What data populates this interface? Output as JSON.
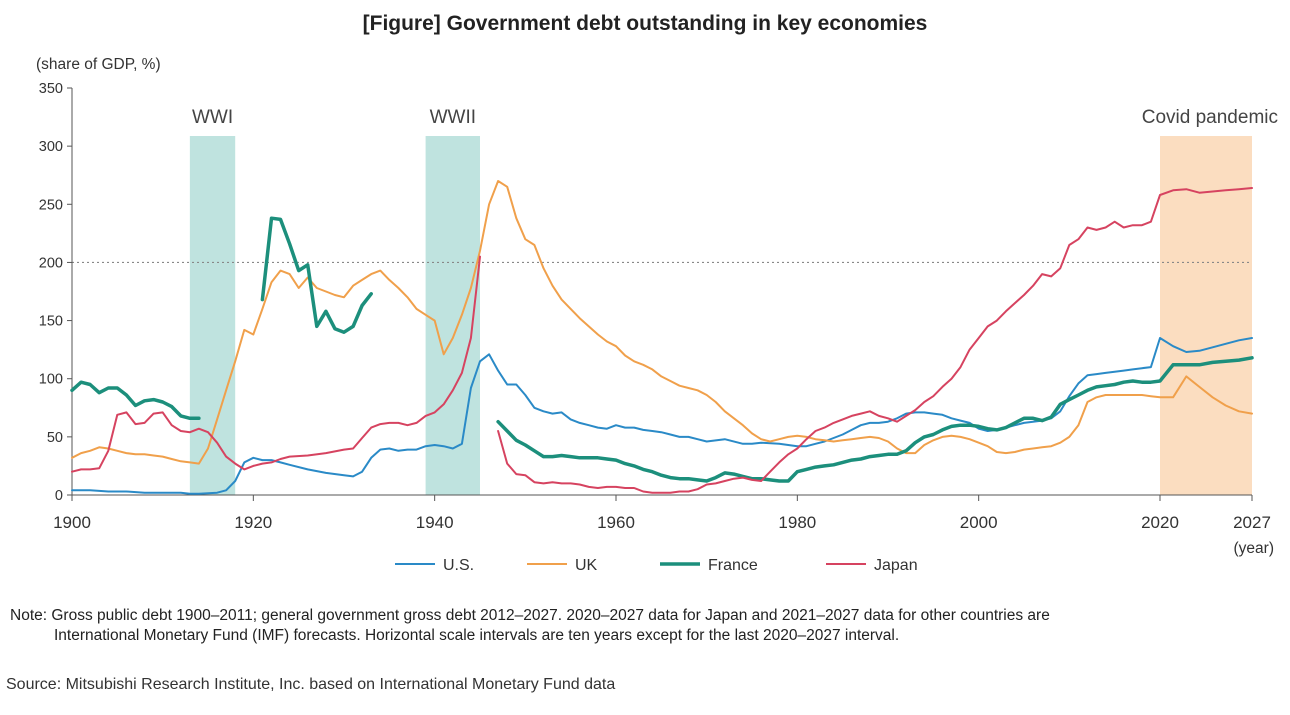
{
  "title": "[Figure] Government debt outstanding in key economies",
  "note": {
    "line1": "Note: Gross public debt 1900–2011; general government gross debt 2012–2027. 2020–2027 data for Japan and 2021–2027 data for other countries are",
    "line2": "International Monetary Fund (IMF) forecasts. Horizontal scale intervals are ten years except for the last 2020–2027 interval."
  },
  "source": "Source: Mitsubishi Research Institute, Inc. based on International Monetary Fund data",
  "chart_data": {
    "type": "line",
    "ylabel": "(share of GDP, %)",
    "xlabel": "(year)",
    "ylim": [
      0,
      350
    ],
    "yticks": [
      0,
      50,
      100,
      150,
      200,
      250,
      300,
      350
    ],
    "xticks": [
      1900,
      1920,
      1940,
      1960,
      1980,
      2000,
      2020,
      2027
    ],
    "x_scale_note": "ten-year intervals, last interval 2020-2027",
    "reference_line": {
      "y": 200,
      "style": "dotted"
    },
    "shaded_periods": [
      {
        "label": "WWI",
        "start": 1913,
        "end": 1918,
        "color": "#bfe3df"
      },
      {
        "label": "WWII",
        "start": 1939,
        "end": 1945,
        "color": "#bfe3df"
      },
      {
        "label": "Covid pandemic",
        "start": 2020,
        "end": 2027,
        "color": "#fbddc0"
      }
    ],
    "legend_position": "bottom",
    "series": [
      {
        "name": "U.S.",
        "color": "#2a8ac7",
        "width": 2,
        "x": [
          1900,
          1902,
          1904,
          1906,
          1908,
          1910,
          1912,
          1913,
          1914,
          1916,
          1917,
          1918,
          1919,
          1920,
          1921,
          1922,
          1923,
          1924,
          1926,
          1928,
          1930,
          1931,
          1932,
          1933,
          1934,
          1935,
          1936,
          1937,
          1938,
          1939,
          1940,
          1941,
          1942,
          1943,
          1944,
          1945,
          1946,
          1947,
          1948,
          1949,
          1950,
          1951,
          1952,
          1953,
          1954,
          1955,
          1956,
          1957,
          1958,
          1959,
          1960,
          1961,
          1962,
          1963,
          1964,
          1965,
          1966,
          1967,
          1968,
          1969,
          1970,
          1972,
          1974,
          1975,
          1976,
          1978,
          1980,
          1981,
          1982,
          1983,
          1984,
          1985,
          1986,
          1987,
          1988,
          1989,
          1990,
          1991,
          1992,
          1993,
          1994,
          1995,
          1996,
          1997,
          1998,
          1999,
          2000,
          2001,
          2002,
          2003,
          2004,
          2005,
          2006,
          2007,
          2008,
          2009,
          2010,
          2011,
          2012,
          2013,
          2014,
          2015,
          2016,
          2017,
          2018,
          2019,
          2020,
          2021,
          2022,
          2023,
          2024,
          2025,
          2026,
          2027
        ],
        "y": [
          4,
          4,
          3,
          3,
          2,
          2,
          2,
          1,
          1,
          2,
          4,
          12,
          28,
          32,
          30,
          30,
          28,
          26,
          22,
          19,
          17,
          16,
          20,
          32,
          39,
          40,
          38,
          39,
          39,
          42,
          43,
          42,
          40,
          44,
          92,
          115,
          121,
          107,
          95,
          95,
          86,
          75,
          72,
          70,
          71,
          65,
          62,
          60,
          58,
          57,
          60,
          58,
          58,
          56,
          55,
          54,
          52,
          50,
          50,
          48,
          46,
          48,
          44,
          44,
          45,
          44,
          42,
          42,
          44,
          46,
          49,
          52,
          56,
          60,
          62,
          62,
          63,
          66,
          70,
          71,
          71,
          70,
          69,
          66,
          64,
          62,
          57,
          55,
          56,
          58,
          60,
          62,
          63,
          64,
          66,
          72,
          85,
          96,
          103,
          104,
          105,
          106,
          107,
          108,
          109,
          110,
          135,
          128,
          123,
          124,
          127,
          130,
          133,
          135
        ]
      },
      {
        "name": "UK",
        "color": "#f0a04b",
        "width": 2,
        "x": [
          1900,
          1901,
          1902,
          1903,
          1904,
          1905,
          1906,
          1907,
          1908,
          1909,
          1910,
          1911,
          1912,
          1913,
          1914,
          1915,
          1916,
          1917,
          1918,
          1919,
          1920,
          1921,
          1922,
          1923,
          1924,
          1925,
          1926,
          1927,
          1928,
          1929,
          1930,
          1931,
          1932,
          1933,
          1934,
          1935,
          1936,
          1937,
          1938,
          1939,
          1940,
          1941,
          1942,
          1943,
          1944,
          1945,
          1946,
          1947,
          1948,
          1949,
          1950,
          1951,
          1952,
          1953,
          1954,
          1955,
          1956,
          1957,
          1958,
          1959,
          1960,
          1961,
          1962,
          1963,
          1964,
          1965,
          1966,
          1967,
          1968,
          1969,
          1970,
          1971,
          1972,
          1973,
          1974,
          1975,
          1976,
          1977,
          1978,
          1979,
          1980,
          1981,
          1982,
          1983,
          1984,
          1985,
          1986,
          1987,
          1988,
          1989,
          1990,
          1991,
          1992,
          1993,
          1994,
          1995,
          1996,
          1997,
          1998,
          1999,
          2000,
          2001,
          2002,
          2003,
          2004,
          2005,
          2006,
          2007,
          2008,
          2009,
          2010,
          2011,
          2012,
          2013,
          2014,
          2015,
          2016,
          2017,
          2018,
          2019,
          2020,
          2021,
          2022,
          2023,
          2024,
          2025,
          2026,
          2027
        ],
        "y": [
          32,
          36,
          38,
          41,
          40,
          38,
          36,
          35,
          35,
          34,
          33,
          31,
          29,
          28,
          27,
          40,
          65,
          90,
          115,
          142,
          138,
          160,
          183,
          193,
          190,
          178,
          187,
          178,
          175,
          172,
          170,
          180,
          185,
          190,
          193,
          185,
          178,
          170,
          160,
          155,
          150,
          121,
          135,
          155,
          178,
          210,
          250,
          270,
          265,
          238,
          220,
          215,
          195,
          180,
          168,
          160,
          152,
          145,
          138,
          132,
          128,
          120,
          115,
          112,
          108,
          102,
          98,
          94,
          92,
          90,
          86,
          80,
          72,
          66,
          60,
          53,
          48,
          46,
          48,
          50,
          51,
          50,
          48,
          47,
          46,
          47,
          48,
          49,
          50,
          49,
          46,
          40,
          36,
          36,
          43,
          47,
          50,
          51,
          50,
          48,
          45,
          42,
          37,
          36,
          37,
          39,
          40,
          41,
          42,
          45,
          50,
          60,
          80,
          84,
          86,
          86,
          86,
          86,
          86,
          85,
          84,
          84,
          102,
          93,
          84,
          77,
          72,
          70
        ]
      },
      {
        "name": "France",
        "color": "#1c8f7c",
        "width": 3.5,
        "segments": [
          {
            "x": [
              1900,
              1901,
              1902,
              1903,
              1904,
              1905,
              1906,
              1907,
              1908,
              1909,
              1910,
              1911,
              1912,
              1913,
              1914
            ],
            "y": [
              90,
              97,
              95,
              88,
              92,
              92,
              86,
              77,
              81,
              82,
              80,
              76,
              68,
              66,
              66
            ]
          },
          {
            "x": [
              1921,
              1922,
              1923,
              1924,
              1925,
              1926,
              1927,
              1928,
              1929,
              1930,
              1931,
              1932,
              1933
            ],
            "y": [
              168,
              238,
              237,
              216,
              193,
              198,
              145,
              158,
              143,
              140,
              145,
              163,
              173
            ]
          },
          {
            "x": [
              1947,
              1948,
              1949,
              1950,
              1951,
              1952,
              1953,
              1954,
              1955,
              1956,
              1957,
              1958,
              1959,
              1960,
              1961,
              1962,
              1963,
              1964,
              1965,
              1966,
              1967,
              1968,
              1969,
              1970,
              1971,
              1972,
              1973,
              1974,
              1975,
              1976,
              1977,
              1978,
              1979,
              1980,
              1981,
              1982,
              1983,
              1984,
              1985,
              1986,
              1987,
              1988,
              1989,
              1990,
              1991,
              1992,
              1993,
              1994,
              1995,
              1996,
              1997,
              1998,
              1999,
              2000,
              2001,
              2002,
              2003,
              2004,
              2005,
              2006,
              2007,
              2008,
              2009,
              2010,
              2011,
              2012,
              2013,
              2014,
              2015,
              2016,
              2017,
              2018,
              2019,
              2020,
              2021,
              2022,
              2023,
              2024,
              2025,
              2026,
              2027
            ],
            "y": [
              63,
              55,
              47,
              43,
              38,
              33,
              33,
              34,
              33,
              32,
              32,
              32,
              31,
              30,
              27,
              25,
              22,
              20,
              17,
              15,
              14,
              14,
              13,
              12,
              15,
              19,
              18,
              16,
              14,
              14,
              13,
              12,
              12,
              20,
              22,
              24,
              25,
              26,
              28,
              30,
              31,
              33,
              34,
              35,
              35,
              38,
              45,
              50,
              52,
              56,
              59,
              60,
              60,
              59,
              57,
              56,
              58,
              62,
              66,
              66,
              64,
              67,
              78,
              82,
              86,
              90,
              93,
              94,
              95,
              97,
              98,
              97,
              97,
              98,
              112,
              112,
              112,
              114,
              115,
              116,
              118
            ]
          }
        ]
      },
      {
        "name": "Japan",
        "color": "#d64360",
        "width": 2,
        "segments": [
          {
            "x": [
              1900,
              1901,
              1902,
              1903,
              1904,
              1905,
              1906,
              1907,
              1908,
              1909,
              1910,
              1911,
              1912,
              1913,
              1914,
              1915,
              1916,
              1917,
              1918,
              1919,
              1920,
              1921,
              1922,
              1923,
              1924,
              1926,
              1928,
              1930,
              1931,
              1932,
              1933,
              1934,
              1935,
              1936,
              1937,
              1938,
              1939,
              1940,
              1941,
              1942,
              1943,
              1944,
              1945
            ],
            "y": [
              20,
              22,
              22,
              23,
              38,
              69,
              71,
              61,
              62,
              70,
              71,
              60,
              55,
              54,
              57,
              54,
              45,
              33,
              27,
              22,
              25,
              27,
              28,
              31,
              33,
              34,
              36,
              39,
              40,
              49,
              58,
              61,
              62,
              62,
              60,
              62,
              68,
              71,
              78,
              90,
              105,
              135,
              205
            ]
          },
          {
            "x": [
              1947,
              1948,
              1949,
              1950,
              1951,
              1952,
              1953,
              1954,
              1955,
              1956,
              1957,
              1958,
              1959,
              1960,
              1961,
              1962,
              1963,
              1964,
              1965,
              1966,
              1967,
              1968,
              1969,
              1970,
              1971,
              1972,
              1973,
              1974,
              1975,
              1976,
              1977,
              1978,
              1979,
              1980,
              1981,
              1982,
              1983,
              1984,
              1985,
              1986,
              1987,
              1988,
              1989,
              1990,
              1991,
              1992,
              1993,
              1994,
              1995,
              1996,
              1997,
              1998,
              1999,
              2000,
              2001,
              2002,
              2003,
              2004,
              2005,
              2006,
              2007,
              2008,
              2009,
              2010,
              2011,
              2012,
              2013,
              2014,
              2015,
              2016,
              2017,
              2018,
              2019,
              2020,
              2021,
              2022,
              2023,
              2024,
              2025,
              2026,
              2027
            ],
            "y": [
              55,
              27,
              18,
              17,
              11,
              10,
              11,
              10,
              10,
              9,
              7,
              6,
              7,
              7,
              6,
              6,
              3,
              2,
              2,
              2,
              3,
              3,
              5,
              9,
              10,
              12,
              14,
              15,
              13,
              12,
              20,
              28,
              35,
              40,
              48,
              55,
              58,
              62,
              65,
              68,
              70,
              72,
              68,
              66,
              63,
              68,
              73,
              80,
              85,
              93,
              100,
              110,
              125,
              135,
              145,
              150,
              158,
              165,
              172,
              180,
              190,
              188,
              195,
              215,
              220,
              230,
              228,
              230,
              235,
              230,
              232,
              232,
              235,
              258,
              262,
              263,
              260,
              261,
              262,
              263,
              264
            ]
          }
        ]
      }
    ]
  }
}
